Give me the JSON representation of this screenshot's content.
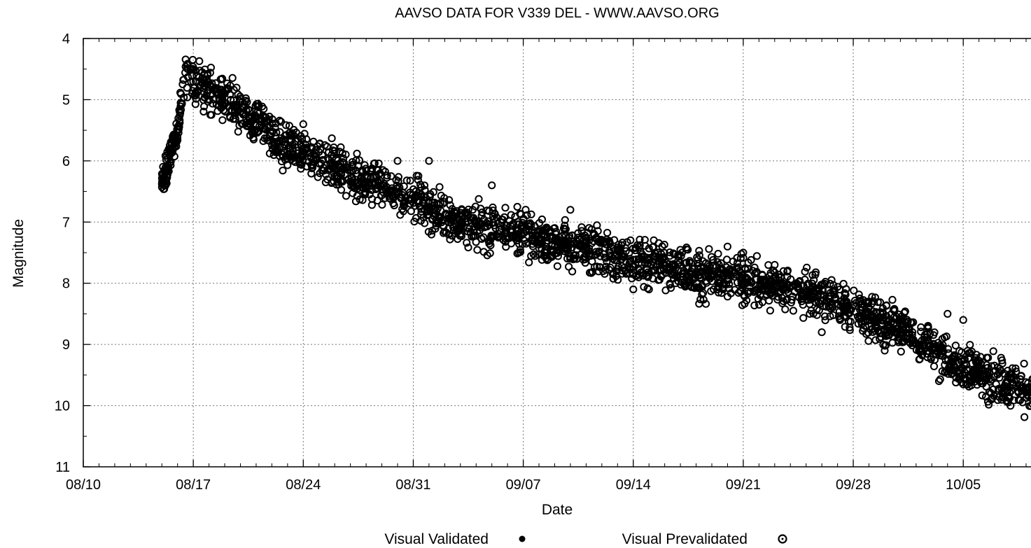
{
  "chart_data": {
    "type": "scatter",
    "title": "AAVSO DATA FOR V339 DEL - WWW.AAVSO.ORG",
    "xlabel": "Date",
    "ylabel": "Magnitude",
    "x_ticks": [
      "08/10",
      "08/17",
      "08/24",
      "08/31",
      "09/07",
      "09/14",
      "09/21",
      "09/28",
      "10/05"
    ],
    "y_ticks": [
      "4",
      "5",
      "6",
      "7",
      "8",
      "9",
      "10",
      "11"
    ],
    "xlim": [
      "2013-08-10",
      "2013-10-10"
    ],
    "ylim": [
      11,
      4
    ],
    "y_inverted": true,
    "grid": true,
    "legend_position": "bottom-center",
    "series": [
      {
        "name": "Visual Validated",
        "marker": "filled-dot",
        "x": [],
        "y": []
      },
      {
        "name": "Visual Prevalidated",
        "marker": "open-circle",
        "trend": {
          "x": [
            "2013-08-15",
            "2013-08-16",
            "2013-08-16.5",
            "2013-08-17",
            "2013-08-18",
            "2013-08-20",
            "2013-08-22",
            "2013-08-24",
            "2013-08-27",
            "2013-08-31",
            "2013-09-03",
            "2013-09-07",
            "2013-09-10",
            "2013-09-14",
            "2013-09-18",
            "2013-09-21",
            "2013-09-25",
            "2013-09-28",
            "2013-10-02",
            "2013-10-05",
            "2013-10-10"
          ],
          "y": [
            6.4,
            5.5,
            4.5,
            4.7,
            4.8,
            5.2,
            5.6,
            5.9,
            6.2,
            6.6,
            7.0,
            7.2,
            7.4,
            7.6,
            7.85,
            7.95,
            8.15,
            8.4,
            8.9,
            9.4,
            9.9
          ]
        },
        "outliers": {
          "x": [
            "2013-08-24",
            "2013-08-30",
            "2013-09-01",
            "2013-09-05",
            "2013-09-10",
            "2013-09-20",
            "2013-09-21",
            "2013-09-23",
            "2013-09-26",
            "2013-09-30",
            "2013-10-04",
            "2013-10-05",
            "2013-09-14",
            "2013-09-15"
          ],
          "y": [
            5.4,
            6.0,
            6.0,
            6.4,
            6.8,
            7.4,
            7.5,
            7.7,
            8.8,
            9.1,
            8.5,
            8.6,
            8.1,
            8.1
          ]
        }
      }
    ]
  }
}
